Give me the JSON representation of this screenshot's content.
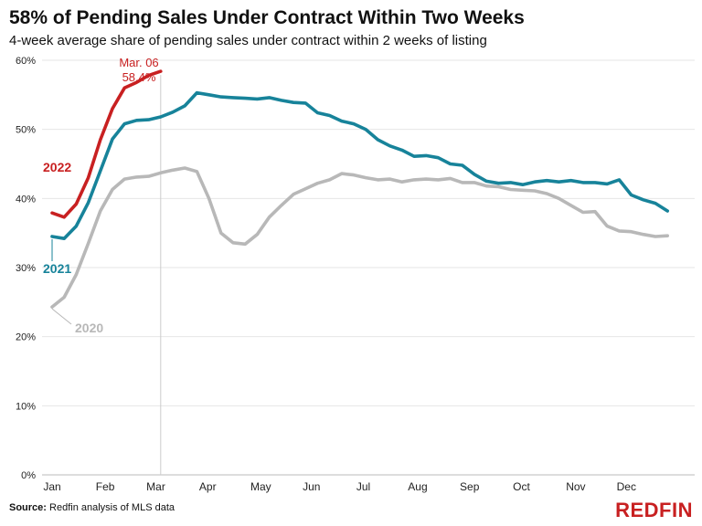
{
  "chart_data": {
    "type": "line",
    "title": "58% of Pending Sales Under Contract Within Two Weeks",
    "subtitle": "4-week average share of pending sales under contract within 2 weeks of listing",
    "xlabel": "",
    "ylabel": "",
    "x_tick_labels": [
      "Jan",
      "Feb",
      "Mar",
      "Apr",
      "May",
      "Jun",
      "Jul",
      "Aug",
      "Sep",
      "Oct",
      "Nov",
      "Dec"
    ],
    "y_ticks": [
      0,
      10,
      20,
      30,
      40,
      50,
      60
    ],
    "y_tick_labels": [
      "0%",
      "10%",
      "20%",
      "30%",
      "40%",
      "50%",
      "60%"
    ],
    "ylim": [
      0,
      60
    ],
    "grid": "horizontal",
    "legend": "inline labels",
    "x_unit": "week of year",
    "series": [
      {
        "name": "2020",
        "color": "#b8b8b8",
        "x": [
          1,
          2,
          3,
          4,
          5,
          6,
          7,
          8,
          9,
          10,
          11,
          12,
          13,
          14,
          15,
          16,
          17,
          18,
          19,
          20,
          21,
          22,
          23,
          24,
          25,
          26,
          27,
          28,
          29,
          30,
          31,
          32,
          33,
          34,
          35,
          36,
          37,
          38,
          39,
          40,
          41,
          42,
          43,
          44,
          45,
          46,
          47,
          48,
          49,
          50,
          51,
          52
        ],
        "values": [
          24.3,
          25.7,
          29.0,
          33.5,
          38.2,
          41.3,
          42.8,
          43.1,
          43.2,
          43.7,
          44.1,
          44.4,
          43.9,
          40.0,
          35.0,
          33.6,
          33.4,
          34.8,
          37.3,
          39.0,
          40.6,
          41.4,
          42.2,
          42.7,
          43.6,
          43.4,
          43.0,
          42.7,
          42.8,
          42.4,
          42.7,
          42.8,
          42.7,
          42.9,
          42.3,
          42.3,
          41.8,
          41.7,
          41.3,
          41.2,
          41.1,
          40.7,
          40.0,
          39.0,
          38.0,
          38.1,
          36.0,
          35.3,
          35.2,
          34.8,
          34.5,
          34.6
        ]
      },
      {
        "name": "2021",
        "color": "#17839a",
        "x": [
          1,
          2,
          3,
          4,
          5,
          6,
          7,
          8,
          9,
          10,
          11,
          12,
          13,
          14,
          15,
          16,
          17,
          18,
          19,
          20,
          21,
          22,
          23,
          24,
          25,
          26,
          27,
          28,
          29,
          30,
          31,
          32,
          33,
          34,
          35,
          36,
          37,
          38,
          39,
          40,
          41,
          42,
          43,
          44,
          45,
          46,
          47,
          48,
          49,
          50,
          51,
          52
        ],
        "values": [
          34.5,
          34.2,
          36.0,
          39.4,
          44.0,
          48.6,
          50.8,
          51.3,
          51.4,
          51.8,
          52.5,
          53.4,
          55.3,
          55.0,
          54.7,
          54.6,
          54.5,
          54.4,
          54.6,
          54.2,
          53.9,
          53.8,
          52.4,
          52.0,
          51.2,
          50.8,
          50.0,
          48.5,
          47.6,
          47.0,
          46.1,
          46.2,
          45.9,
          45.0,
          44.8,
          43.5,
          42.5,
          42.2,
          42.3,
          42.0,
          42.4,
          42.6,
          42.4,
          42.6,
          42.3,
          42.3,
          42.1,
          42.7,
          40.5,
          39.8,
          39.3,
          38.2
        ]
      },
      {
        "name": "2022",
        "color": "#c82021",
        "x": [
          1,
          2,
          3,
          4,
          5,
          6,
          7,
          8,
          9,
          10
        ],
        "values": [
          37.9,
          37.3,
          39.2,
          43.0,
          48.5,
          53.0,
          56.0,
          56.8,
          57.8,
          58.4
        ]
      }
    ],
    "annotations": [
      {
        "text": "Mar. 06",
        "series": "2022"
      },
      {
        "text": "58.4%",
        "series": "2022"
      }
    ],
    "reference_line": {
      "x": 10,
      "label": "Mar. 06"
    }
  },
  "source": {
    "prefix": "Source:",
    "text": "Redfin analysis of MLS data"
  },
  "brand": {
    "logo_text": "REDFIN",
    "color": "#c82021"
  }
}
